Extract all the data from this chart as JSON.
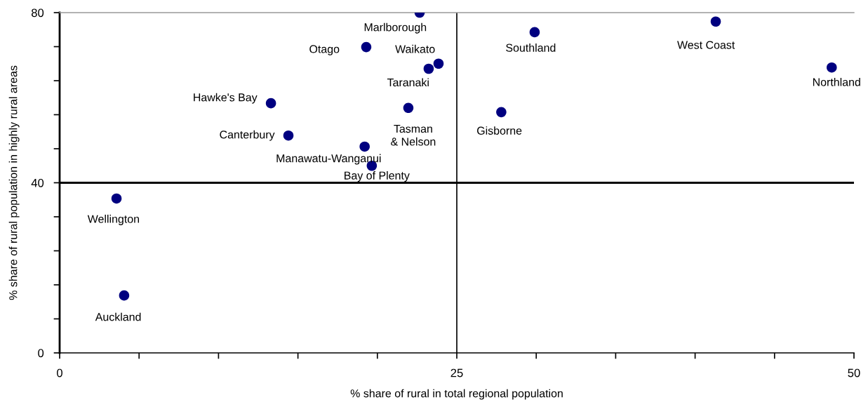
{
  "chart_data": {
    "type": "scatter",
    "xlabel": "% share of rural in total regional population",
    "ylabel": "% share of rural population in highly rural areas",
    "xlim": [
      0,
      50
    ],
    "ylim": [
      0,
      80
    ],
    "xticks": [
      0,
      {
        "value": 5,
        "label": null
      },
      {
        "value": 10,
        "label": null
      },
      {
        "value": 15,
        "label": null
      },
      {
        "value": 20,
        "label": null
      },
      25,
      {
        "value": 30,
        "label": null
      },
      {
        "value": 35,
        "label": null
      },
      {
        "value": 40,
        "label": null
      },
      {
        "value": 45,
        "label": null
      },
      50
    ],
    "yticks": [
      0,
      {
        "value": 8,
        "label": null
      },
      {
        "value": 16,
        "label": null
      },
      {
        "value": 24,
        "label": null
      },
      {
        "value": 32,
        "label": null
      },
      40,
      {
        "value": 48,
        "label": null
      },
      {
        "value": 56,
        "label": null
      },
      {
        "value": 64,
        "label": null
      },
      {
        "value": 72,
        "label": null
      },
      80
    ],
    "grid": false,
    "legend": false,
    "marker": "circle",
    "series": [
      {
        "color": "#000080",
        "x": [
          22.66,
          19.3,
          23.85,
          23.23,
          29.9,
          41.3,
          48.6,
          13.3,
          21.95,
          27.8,
          14.4,
          19.2,
          19.65,
          3.58,
          4.06
        ],
        "values": [
          80.0,
          71.9,
          68.0,
          66.8,
          75.4,
          77.9,
          67.1,
          58.7,
          57.6,
          56.6,
          51.1,
          48.5,
          44.0,
          36.3,
          13.5
        ]
      }
    ],
    "ref_lines": [
      {
        "axis": "y",
        "value": 40,
        "color": "#000000"
      },
      {
        "axis": "x",
        "value": 25,
        "color": "#000000"
      }
    ],
    "annotations": [
      {
        "text": "Marlborough",
        "x": 22.66,
        "y": 80.0
      },
      {
        "text": "Otago",
        "x": 19.3,
        "y": 71.9
      },
      {
        "text": "Waikato",
        "x": 23.85,
        "y": 68.0
      },
      {
        "text": "Taranaki",
        "x": 23.23,
        "y": 66.8
      },
      {
        "text": "Southland",
        "x": 29.9,
        "y": 75.4
      },
      {
        "text": "West Coast",
        "x": 41.3,
        "y": 77.9
      },
      {
        "text": "Northland",
        "x": 48.6,
        "y": 67.1
      },
      {
        "text": "Hawke's Bay",
        "x": 13.3,
        "y": 58.7
      },
      {
        "text": "Tasman\n& Nelson",
        "x": 21.95,
        "y": 57.6
      },
      {
        "text": "Gisborne",
        "x": 27.8,
        "y": 56.6
      },
      {
        "text": "Canterbury",
        "x": 14.4,
        "y": 51.1
      },
      {
        "text": "Manawatu-Wanganui",
        "x": 19.2,
        "y": 48.5
      },
      {
        "text": "Bay of Plenty",
        "x": 19.65,
        "y": 44.0
      },
      {
        "text": "Wellington",
        "x": 3.58,
        "y": 36.3
      },
      {
        "text": "Auckland",
        "x": 4.06,
        "y": 13.5
      }
    ]
  }
}
